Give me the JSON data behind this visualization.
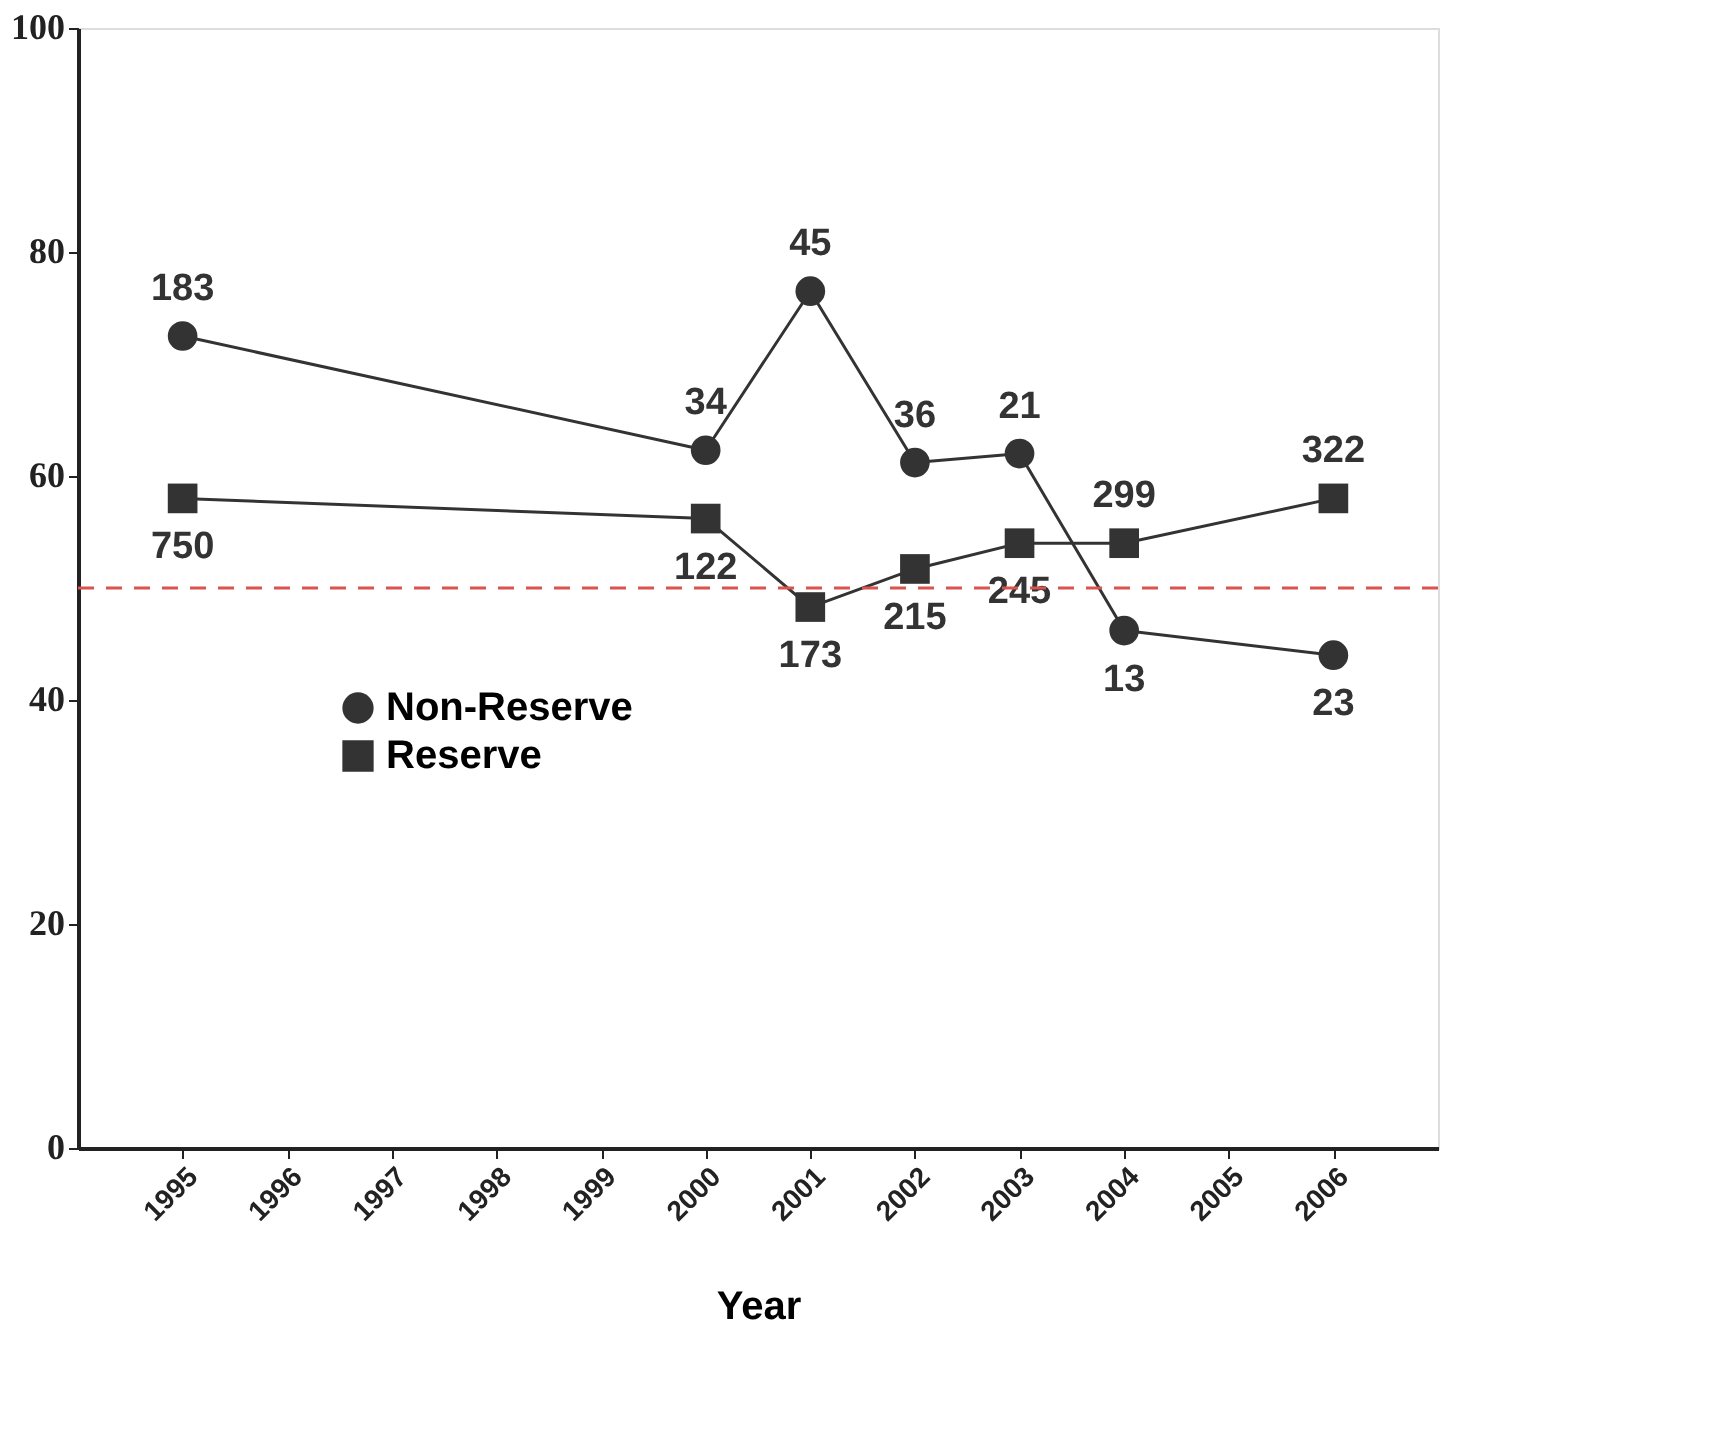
{
  "chart_data": {
    "type": "line",
    "xlabel": "Year",
    "x": [
      1995,
      2000,
      2001,
      2002,
      2003,
      2004,
      2006
    ],
    "xlim": [
      1994,
      2007
    ],
    "xticks": [
      1995,
      1996,
      1997,
      1998,
      1999,
      2000,
      2001,
      2002,
      2003,
      2004,
      2005,
      2006
    ],
    "ylim": [
      0,
      100
    ],
    "yticks": [
      0,
      20,
      40,
      60,
      80,
      100
    ],
    "series": [
      {
        "name": "Non-Reserve",
        "color": "#333333",
        "marker": "circle",
        "values": [
          72.5,
          62.3,
          76.5,
          61.2,
          62.0,
          46.2,
          44.0
        ]
      },
      {
        "name": "Reserve",
        "color": "#333333",
        "marker": "square",
        "values": [
          58.0,
          56.2,
          48.3,
          51.7,
          54.0,
          54.0,
          58.0
        ]
      }
    ],
    "annotations": [
      {
        "text": "183",
        "x": 1995,
        "y": 72.5
      },
      {
        "text": "34",
        "x": 2000,
        "y": 62.3
      },
      {
        "text": "45",
        "x": 2001,
        "y": 76.5
      },
      {
        "text": "36",
        "x": 2002,
        "y": 61.2
      },
      {
        "text": "21",
        "x": 2003,
        "y": 62.0
      },
      {
        "text": "13",
        "x": 2004,
        "y": 46.2
      },
      {
        "text": "23",
        "x": 2006,
        "y": 44.0
      },
      {
        "text": "750",
        "x": 1995,
        "y": 58.0
      },
      {
        "text": "122",
        "x": 2000,
        "y": 56.2
      },
      {
        "text": "173",
        "x": 2001,
        "y": 48.3
      },
      {
        "text": "215",
        "x": 2002,
        "y": 51.7
      },
      {
        "text": "245",
        "x": 2003,
        "y": 54.0
      },
      {
        "text": "299",
        "x": 2004,
        "y": 54.0
      },
      {
        "text": "322",
        "x": 2006,
        "y": 58.0
      }
    ],
    "ref_lines": [
      {
        "axis": "y",
        "value": 50,
        "color": "#d9534f",
        "line_style": "dashed"
      }
    ],
    "legend": "left",
    "grid": false,
    "line_style": "solid"
  }
}
